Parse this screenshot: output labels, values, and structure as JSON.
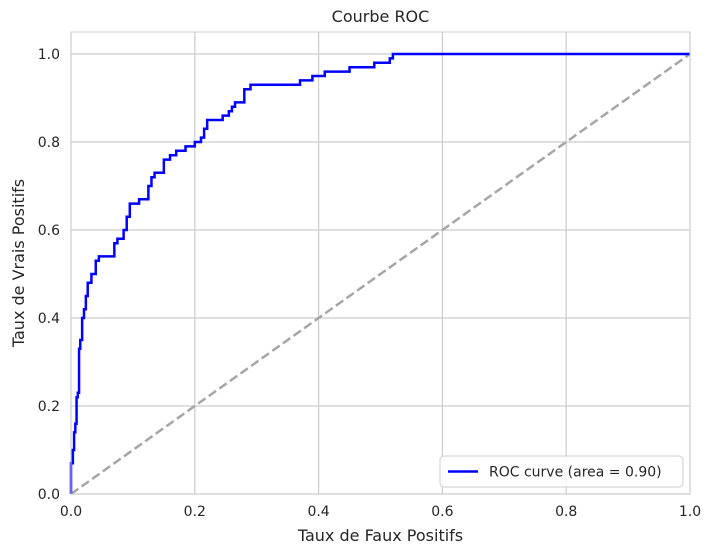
{
  "chart_data": {
    "type": "line",
    "title": "Courbe ROC",
    "xlabel": "Taux de Faux Positifs",
    "ylabel": "Taux de Vrais Positifs",
    "xlim": [
      0.0,
      1.0
    ],
    "ylim": [
      0.0,
      1.05
    ],
    "xticks": [
      0.0,
      0.2,
      0.4,
      0.6,
      0.8,
      1.0
    ],
    "yticks": [
      0.0,
      0.2,
      0.4,
      0.6,
      0.8,
      1.0
    ],
    "xtick_labels": [
      "0.0",
      "0.2",
      "0.4",
      "0.6",
      "0.8",
      "1.0"
    ],
    "ytick_labels": [
      "0.0",
      "0.2",
      "0.4",
      "0.6",
      "0.8",
      "1.0"
    ],
    "grid": true,
    "legend_position": "bottom-right",
    "series": [
      {
        "name": "ROC curve (area = 0.90)",
        "color": "#0000ff",
        "style": "solid",
        "x": [
          0.0,
          0.0,
          0.003,
          0.003,
          0.005,
          0.005,
          0.007,
          0.007,
          0.009,
          0.009,
          0.011,
          0.011,
          0.013,
          0.013,
          0.015,
          0.015,
          0.018,
          0.018,
          0.021,
          0.021,
          0.024,
          0.024,
          0.027,
          0.027,
          0.03,
          0.03,
          0.033,
          0.033,
          0.04,
          0.04,
          0.045,
          0.045,
          0.05,
          0.05,
          0.058,
          0.058,
          0.07,
          0.07,
          0.075,
          0.075,
          0.085,
          0.085,
          0.09,
          0.09,
          0.095,
          0.095,
          0.11,
          0.11,
          0.125,
          0.125,
          0.13,
          0.13,
          0.135,
          0.135,
          0.15,
          0.15,
          0.16,
          0.16,
          0.17,
          0.17,
          0.185,
          0.185,
          0.2,
          0.2,
          0.21,
          0.21,
          0.215,
          0.215,
          0.22,
          0.22,
          0.245,
          0.245,
          0.255,
          0.255,
          0.26,
          0.26,
          0.265,
          0.265,
          0.28,
          0.28,
          0.29,
          0.29,
          0.37,
          0.37,
          0.39,
          0.39,
          0.41,
          0.41,
          0.45,
          0.45,
          0.49,
          0.49,
          0.515,
          0.515,
          0.52,
          0.52,
          1.0
        ],
        "y": [
          0.0,
          0.07,
          0.07,
          0.1,
          0.1,
          0.14,
          0.14,
          0.16,
          0.16,
          0.22,
          0.22,
          0.23,
          0.23,
          0.33,
          0.33,
          0.35,
          0.35,
          0.4,
          0.4,
          0.42,
          0.42,
          0.45,
          0.45,
          0.48,
          0.48,
          0.48,
          0.48,
          0.5,
          0.5,
          0.53,
          0.53,
          0.54,
          0.54,
          0.54,
          0.54,
          0.54,
          0.54,
          0.57,
          0.57,
          0.58,
          0.58,
          0.6,
          0.6,
          0.63,
          0.63,
          0.66,
          0.66,
          0.67,
          0.67,
          0.7,
          0.7,
          0.72,
          0.72,
          0.73,
          0.73,
          0.76,
          0.76,
          0.77,
          0.77,
          0.78,
          0.78,
          0.79,
          0.79,
          0.8,
          0.8,
          0.81,
          0.81,
          0.83,
          0.83,
          0.85,
          0.85,
          0.86,
          0.86,
          0.87,
          0.87,
          0.88,
          0.88,
          0.89,
          0.89,
          0.92,
          0.92,
          0.93,
          0.93,
          0.94,
          0.94,
          0.95,
          0.95,
          0.96,
          0.96,
          0.97,
          0.97,
          0.98,
          0.98,
          0.99,
          0.99,
          1.0,
          1.0
        ]
      },
      {
        "name": "",
        "color": "#a6a6a6",
        "style": "dashed",
        "x": [
          0.0,
          1.0
        ],
        "y": [
          0.0,
          1.0
        ]
      }
    ]
  }
}
